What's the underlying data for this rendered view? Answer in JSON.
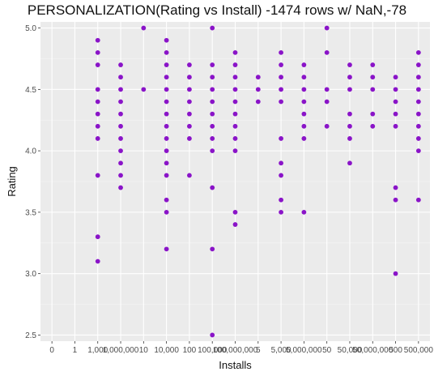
{
  "chart_data": {
    "type": "scatter",
    "title": "PERSONALIZATION(Rating vs Install) -1474 rows w/ NaN,-78",
    "xlabel": "Installs",
    "ylabel": "Rating",
    "x_categories": [
      "0",
      "1",
      "1,000",
      "1,000,000",
      "10",
      "10,000",
      "100",
      "100,000",
      "100,000,000",
      "5",
      "5,000",
      "5,000,000",
      "50",
      "50,000",
      "50,000,000",
      "500",
      "500,000"
    ],
    "y_ticks": [
      "2.5",
      "3.0",
      "3.5",
      "4.0",
      "4.5",
      "5.0"
    ],
    "ylim": [
      2.45,
      5.05
    ],
    "grid": true,
    "point_color": "#8a14c8",
    "panel_color": "#ebebeb",
    "points": [
      {
        "x": "1,000",
        "y": [
          4.9,
          4.8,
          4.7,
          4.5,
          4.4,
          4.3,
          4.2,
          4.1,
          3.8,
          3.3,
          3.1
        ]
      },
      {
        "x": "1,000,000",
        "y": [
          4.7,
          4.6,
          4.5,
          4.4,
          4.3,
          4.2,
          4.1,
          4.0,
          3.9,
          3.8,
          3.7
        ]
      },
      {
        "x": "10",
        "y": [
          5.0,
          4.5
        ]
      },
      {
        "x": "10,000",
        "y": [
          4.9,
          4.8,
          4.7,
          4.6,
          4.5,
          4.4,
          4.3,
          4.2,
          4.1,
          4.0,
          3.9,
          3.8,
          3.6,
          3.5,
          3.2
        ]
      },
      {
        "x": "100",
        "y": [
          4.7,
          4.6,
          4.5,
          4.4,
          4.3,
          4.2,
          4.1,
          3.8
        ]
      },
      {
        "x": "100,000",
        "y": [
          5.0,
          4.7,
          4.6,
          4.5,
          4.4,
          4.3,
          4.2,
          4.1,
          4.0,
          3.7,
          3.2,
          2.5
        ]
      },
      {
        "x": "100,000,000",
        "y": [
          4.8,
          4.7,
          4.6,
          4.5,
          4.4,
          4.3,
          4.2,
          4.1,
          4.0,
          3.5,
          3.4
        ]
      },
      {
        "x": "5",
        "y": [
          4.6,
          4.5,
          4.4
        ]
      },
      {
        "x": "5,000",
        "y": [
          4.8,
          4.7,
          4.6,
          4.5,
          4.4,
          4.1,
          3.9,
          3.8,
          3.6,
          3.5
        ]
      },
      {
        "x": "5,000,000",
        "y": [
          4.7,
          4.6,
          4.5,
          4.4,
          4.3,
          4.2,
          4.1,
          3.5
        ]
      },
      {
        "x": "50",
        "y": [
          5.0,
          4.8,
          4.5,
          4.4,
          4.2
        ]
      },
      {
        "x": "50,000",
        "y": [
          4.7,
          4.6,
          4.5,
          4.3,
          4.2,
          4.1,
          3.9
        ]
      },
      {
        "x": "50,000,000",
        "y": [
          4.7,
          4.6,
          4.5,
          4.3,
          4.2
        ]
      },
      {
        "x": "500",
        "y": [
          4.6,
          4.5,
          4.4,
          4.3,
          4.2,
          3.7,
          3.6,
          3.0
        ]
      },
      {
        "x": "500,000",
        "y": [
          4.8,
          4.7,
          4.6,
          4.5,
          4.4,
          4.3,
          4.2,
          4.1,
          4.0,
          3.6
        ]
      }
    ]
  }
}
